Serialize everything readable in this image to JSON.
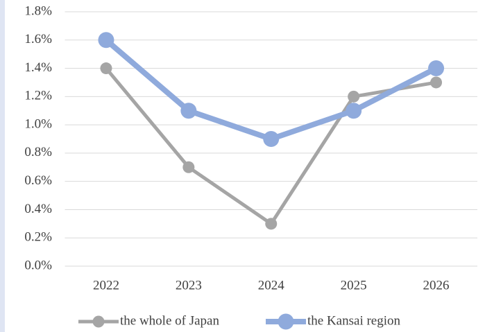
{
  "chart_data": {
    "type": "line",
    "categories": [
      "2022",
      "2023",
      "2024",
      "2025",
      "2026"
    ],
    "series": [
      {
        "name": "the whole of Japan",
        "color": "#a5a5a5",
        "values": [
          1.4,
          0.7,
          0.3,
          1.2,
          1.3
        ]
      },
      {
        "name": "the Kansai region",
        "color": "#8faadc",
        "values": [
          1.6,
          1.1,
          0.9,
          1.1,
          1.4
        ]
      }
    ],
    "ylim": [
      0,
      1.8
    ],
    "yticks": [
      {
        "value": 0,
        "label": "0.0%"
      },
      {
        "value": 0.2,
        "label": "0.2%"
      },
      {
        "value": 0.4,
        "label": "0.4%"
      },
      {
        "value": 0.6,
        "label": "0.6%"
      },
      {
        "value": 0.8,
        "label": "0.8%"
      },
      {
        "value": 1.0,
        "label": "1.0%"
      },
      {
        "value": 1.2,
        "label": "1.2%"
      },
      {
        "value": 1.4,
        "label": "1.4%"
      },
      {
        "value": 1.6,
        "label": "1.6%"
      },
      {
        "value": 1.8,
        "label": "1.8%"
      }
    ],
    "grid": true,
    "legend": "bottom"
  }
}
